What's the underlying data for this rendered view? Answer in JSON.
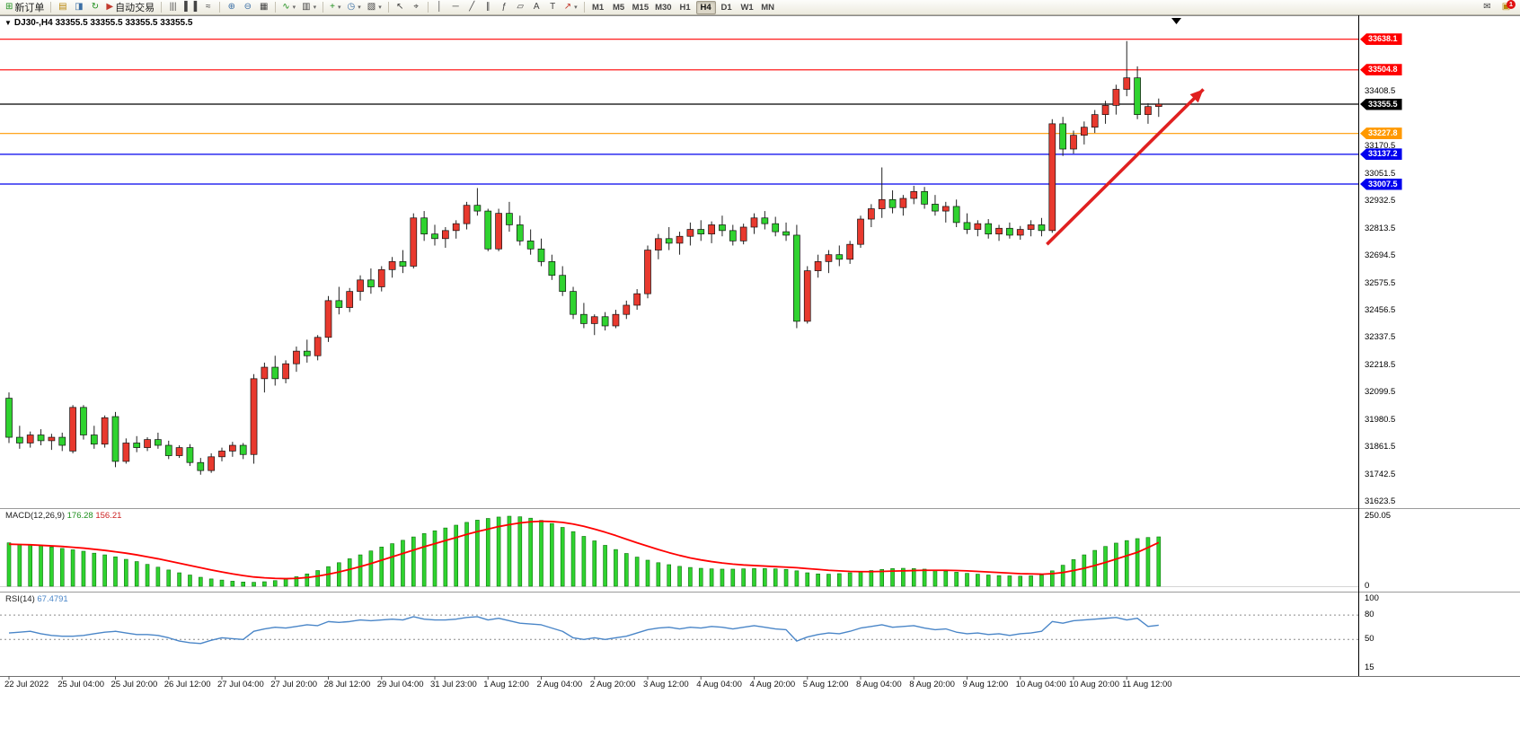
{
  "toolbar": {
    "labels": {
      "new_order": "新订单",
      "autotrading": "自动交易"
    },
    "icons": {
      "new_order": "⊞",
      "market_watch": "▤",
      "navigator": "◨",
      "refresh": "↻",
      "autotrading": "▶",
      "bar_chart": "|||",
      "candle_chart": "▌▐",
      "line_chart": "≈",
      "zoom_in": "⊕",
      "zoom_out": "⊖",
      "tile_windows": "▦",
      "indicators": "∿",
      "templates": "▥",
      "add_indicator": "+",
      "periods": "◷",
      "profiles": "▧",
      "cursor": "↖",
      "crosshair": "⌖",
      "vline": "│",
      "hline": "─",
      "trendline": "╱",
      "channel": "∥",
      "fibonacci": "ƒ",
      "shapes": "▱",
      "text": "A",
      "text_label": "T",
      "arrows": "↗",
      "dropdown": "▾",
      "mail": "✉",
      "news": "▣"
    },
    "timeframes": [
      "M1",
      "M5",
      "M15",
      "M30",
      "H1",
      "H4",
      "D1",
      "W1",
      "MN"
    ],
    "active_timeframe": "H4",
    "notifications": "1"
  },
  "chart": {
    "deal_arrow": "▼",
    "title": "DJ30-,H4 33355.5 33355.5 33355.5 33355.5"
  },
  "chart_data": {
    "type": "candlestick",
    "symbol": "DJ30-",
    "timeframe": "H4",
    "title": "DJ30-,H4 33355.5 33355.5 33355.5 33355.5",
    "colors": {
      "up": "#e8392e",
      "down": "#2fd32f",
      "wick": "#222222"
    },
    "price_axis": {
      "ticks": [
        33408.5,
        33170.5,
        33051.5,
        32932.5,
        32813.5,
        32694.5,
        32575.5,
        32456.5,
        32337.5,
        32218.5,
        32099.5,
        31980.5,
        31861.5,
        31742.5,
        31623.5
      ]
    },
    "hlines": [
      {
        "price": 33638.1,
        "color": "#ff0000"
      },
      {
        "price": 33504.8,
        "color": "#ff0000"
      },
      {
        "price": 33227.8,
        "color": "#ff9900"
      },
      {
        "price": 33137.2,
        "color": "#0000ee"
      },
      {
        "price": 33007.5,
        "color": "#0000ee"
      }
    ],
    "price_line": {
      "price": 33355.5,
      "color": "#000000"
    },
    "annotation_arrow": {
      "from_bar": 97.5,
      "from_price": 32745,
      "to_bar": 112.2,
      "to_price": 33420,
      "color": "#e02020"
    },
    "candles": [
      [
        32075,
        32100,
        31880,
        31905
      ],
      [
        31905,
        31955,
        31855,
        31880
      ],
      [
        31880,
        31930,
        31860,
        31915
      ],
      [
        31915,
        31940,
        31870,
        31890
      ],
      [
        31890,
        31920,
        31850,
        31905
      ],
      [
        31905,
        31925,
        31845,
        31870
      ],
      [
        31845,
        32045,
        31835,
        32035
      ],
      [
        32035,
        32045,
        31895,
        31915
      ],
      [
        31915,
        31955,
        31855,
        31875
      ],
      [
        31875,
        32000,
        31860,
        31990
      ],
      [
        31995,
        32015,
        31775,
        31800
      ],
      [
        31800,
        31900,
        31790,
        31880
      ],
      [
        31880,
        31910,
        31840,
        31860
      ],
      [
        31860,
        31905,
        31845,
        31895
      ],
      [
        31895,
        31925,
        31855,
        31870
      ],
      [
        31870,
        31890,
        31810,
        31825
      ],
      [
        31825,
        31870,
        31815,
        31860
      ],
      [
        31860,
        31875,
        31780,
        31795
      ],
      [
        31795,
        31815,
        31742,
        31760
      ],
      [
        31760,
        31835,
        31750,
        31820
      ],
      [
        31820,
        31860,
        31800,
        31845
      ],
      [
        31845,
        31885,
        31820,
        31870
      ],
      [
        31870,
        31880,
        31810,
        31830
      ],
      [
        31830,
        32180,
        31790,
        32160
      ],
      [
        32160,
        32230,
        32100,
        32210
      ],
      [
        32210,
        32260,
        32130,
        32160
      ],
      [
        32160,
        32240,
        32140,
        32225
      ],
      [
        32225,
        32300,
        32190,
        32280
      ],
      [
        32280,
        32330,
        32230,
        32260
      ],
      [
        32260,
        32350,
        32240,
        32340
      ],
      [
        32340,
        32520,
        32320,
        32500
      ],
      [
        32500,
        32560,
        32440,
        32470
      ],
      [
        32470,
        32555,
        32450,
        32540
      ],
      [
        32540,
        32610,
        32500,
        32590
      ],
      [
        32590,
        32640,
        32530,
        32560
      ],
      [
        32560,
        32650,
        32540,
        32635
      ],
      [
        32635,
        32690,
        32600,
        32670
      ],
      [
        32670,
        32720,
        32620,
        32650
      ],
      [
        32650,
        32880,
        32640,
        32860
      ],
      [
        32860,
        32890,
        32760,
        32790
      ],
      [
        32790,
        32830,
        32740,
        32770
      ],
      [
        32770,
        32820,
        32730,
        32805
      ],
      [
        32805,
        32850,
        32770,
        32835
      ],
      [
        32835,
        32930,
        32810,
        32915
      ],
      [
        32915,
        32990,
        32870,
        32890
      ],
      [
        32890,
        32900,
        32715,
        32725
      ],
      [
        32725,
        32900,
        32715,
        32880
      ],
      [
        32880,
        32930,
        32800,
        32830
      ],
      [
        32830,
        32870,
        32740,
        32760
      ],
      [
        32760,
        32810,
        32700,
        32725
      ],
      [
        32725,
        32770,
        32650,
        32670
      ],
      [
        32670,
        32700,
        32590,
        32610
      ],
      [
        32610,
        32650,
        32520,
        32540
      ],
      [
        32540,
        32560,
        32420,
        32440
      ],
      [
        32440,
        32490,
        32380,
        32400
      ],
      [
        32400,
        32440,
        32350,
        32430
      ],
      [
        32430,
        32450,
        32370,
        32390
      ],
      [
        32390,
        32460,
        32380,
        32440
      ],
      [
        32440,
        32500,
        32420,
        32480
      ],
      [
        32480,
        32550,
        32460,
        32530
      ],
      [
        32530,
        32740,
        32510,
        32720
      ],
      [
        32720,
        32790,
        32680,
        32770
      ],
      [
        32770,
        32820,
        32720,
        32750
      ],
      [
        32750,
        32800,
        32700,
        32780
      ],
      [
        32780,
        32840,
        32740,
        32810
      ],
      [
        32810,
        32850,
        32760,
        32790
      ],
      [
        32790,
        32845,
        32750,
        32830
      ],
      [
        32830,
        32870,
        32780,
        32805
      ],
      [
        32805,
        32830,
        32740,
        32760
      ],
      [
        32760,
        32835,
        32745,
        32820
      ],
      [
        32820,
        32880,
        32790,
        32860
      ],
      [
        32860,
        32890,
        32810,
        32835
      ],
      [
        32835,
        32865,
        32780,
        32800
      ],
      [
        32800,
        32840,
        32760,
        32785
      ],
      [
        32785,
        32830,
        32380,
        32410
      ],
      [
        32410,
        32650,
        32400,
        32630
      ],
      [
        32630,
        32700,
        32600,
        32670
      ],
      [
        32670,
        32720,
        32620,
        32700
      ],
      [
        32700,
        32740,
        32650,
        32680
      ],
      [
        32680,
        32760,
        32660,
        32745
      ],
      [
        32745,
        32870,
        32730,
        32855
      ],
      [
        32855,
        32920,
        32820,
        32900
      ],
      [
        32900,
        33080,
        32860,
        32940
      ],
      [
        32940,
        32980,
        32880,
        32905
      ],
      [
        32905,
        32960,
        32870,
        32945
      ],
      [
        32945,
        33000,
        32920,
        32975
      ],
      [
        32975,
        32995,
        32900,
        32920
      ],
      [
        32920,
        32960,
        32870,
        32890
      ],
      [
        32890,
        32930,
        32840,
        32910
      ],
      [
        32910,
        32940,
        32820,
        32840
      ],
      [
        32840,
        32880,
        32790,
        32810
      ],
      [
        32810,
        32850,
        32780,
        32835
      ],
      [
        32835,
        32855,
        32770,
        32790
      ],
      [
        32790,
        32830,
        32760,
        32815
      ],
      [
        32815,
        32840,
        32770,
        32785
      ],
      [
        32785,
        32825,
        32765,
        32810
      ],
      [
        32810,
        32850,
        32780,
        32830
      ],
      [
        32830,
        32860,
        32780,
        32805
      ],
      [
        32805,
        33290,
        32795,
        33270
      ],
      [
        33270,
        33300,
        33130,
        33160
      ],
      [
        33160,
        33240,
        33140,
        33220
      ],
      [
        33220,
        33280,
        33180,
        33255
      ],
      [
        33255,
        33330,
        33230,
        33310
      ],
      [
        33310,
        33370,
        33270,
        33350
      ],
      [
        33350,
        33440,
        33310,
        33420
      ],
      [
        33420,
        33630,
        33390,
        33470
      ],
      [
        33470,
        33520,
        33290,
        33310
      ],
      [
        33310,
        33360,
        33270,
        33345
      ],
      [
        33345,
        33380,
        33300,
        33355.5
      ]
    ],
    "time_labels": [
      {
        "t": "22 Jul 2022",
        "b": 0
      },
      {
        "t": "25 Jul 04:00",
        "b": 5
      },
      {
        "t": "25 Jul 20:00",
        "b": 10
      },
      {
        "t": "26 Jul 12:00",
        "b": 15
      },
      {
        "t": "27 Jul 04:00",
        "b": 20
      },
      {
        "t": "27 Jul 20:00",
        "b": 25
      },
      {
        "t": "28 Jul 12:00",
        "b": 30
      },
      {
        "t": "29 Jul 04:00",
        "b": 35
      },
      {
        "t": "31 Jul 23:00",
        "b": 40
      },
      {
        "t": "1 Aug 12:00",
        "b": 45
      },
      {
        "t": "2 Aug 04:00",
        "b": 50
      },
      {
        "t": "2 Aug 20:00",
        "b": 55
      },
      {
        "t": "3 Aug 12:00",
        "b": 60
      },
      {
        "t": "4 Aug 04:00",
        "b": 65
      },
      {
        "t": "4 Aug 20:00",
        "b": 70
      },
      {
        "t": "5 Aug 12:00",
        "b": 75
      },
      {
        "t": "8 Aug 04:00",
        "b": 80
      },
      {
        "t": "8 Aug 20:00",
        "b": 85
      },
      {
        "t": "9 Aug 12:00",
        "b": 90
      },
      {
        "t": "10 Aug 04:00",
        "b": 95
      },
      {
        "t": "10 Aug 20:00",
        "b": 100
      },
      {
        "t": "11 Aug 12:00",
        "b": 105
      }
    ],
    "macd": {
      "name": "MACD(12,26,9)",
      "value": "176.28",
      "signal_value": "156.21",
      "axis": {
        "max": 250.05,
        "max_label": "250.05",
        "min": 0,
        "min_label": "0"
      },
      "colors": {
        "histogram": "#2fd32f",
        "signal": "#ff0000"
      },
      "histogram": [
        155,
        150,
        148,
        145,
        140,
        135,
        130,
        125,
        118,
        112,
        105,
        96,
        88,
        78,
        68,
        58,
        48,
        40,
        32,
        26,
        22,
        18,
        15,
        14,
        16,
        20,
        26,
        34,
        44,
        56,
        70,
        84,
        98,
        112,
        126,
        140,
        152,
        164,
        176,
        188,
        198,
        208,
        218,
        228,
        236,
        242,
        247,
        250,
        248,
        243,
        235,
        224,
        210,
        195,
        178,
        162,
        146,
        131,
        117,
        104,
        93,
        84,
        77,
        71,
        67,
        64,
        62,
        61,
        61,
        62,
        63,
        63,
        62,
        60,
        55,
        48,
        44,
        43,
        45,
        48,
        52,
        56,
        60,
        63,
        64,
        63,
        61,
        58,
        54,
        50,
        46,
        43,
        40,
        38,
        37,
        36,
        37,
        40,
        55,
        75,
        95,
        112,
        128,
        142,
        154,
        163,
        170,
        174,
        176.28
      ],
      "signal": [
        150,
        149,
        148,
        146,
        144,
        142,
        139,
        136,
        132,
        128,
        123,
        118,
        112,
        105,
        98,
        90,
        82,
        74,
        66,
        58,
        51,
        44,
        38,
        33,
        30,
        28,
        27,
        28,
        31,
        36,
        43,
        51,
        60,
        70,
        81,
        93,
        105,
        117,
        129,
        141,
        152,
        163,
        174,
        185,
        195,
        204,
        213,
        220,
        226,
        230,
        232,
        231,
        228,
        222,
        214,
        204,
        193,
        181,
        168,
        155,
        143,
        131,
        120,
        110,
        101,
        94,
        88,
        83,
        79,
        76,
        74,
        72,
        70,
        68,
        66,
        63,
        60,
        57,
        55,
        53,
        52,
        52,
        53,
        54,
        55,
        56,
        57,
        57,
        57,
        56,
        55,
        53,
        51,
        49,
        47,
        45,
        44,
        43,
        45,
        49,
        56,
        64,
        74,
        85,
        97,
        109,
        121,
        138,
        156.21
      ]
    },
    "rsi": {
      "name": "RSI(14)",
      "value": "67.4791",
      "color": "#4a86c8",
      "axis_labels": [
        100,
        80,
        50,
        15
      ],
      "levels": [
        80,
        50
      ],
      "values": [
        58,
        59,
        60,
        57,
        55,
        54,
        54,
        55,
        57,
        59,
        60,
        58,
        56,
        56,
        55,
        52,
        48,
        46,
        45,
        49,
        52,
        51,
        50,
        60,
        63,
        65,
        64,
        66,
        68,
        67,
        72,
        71,
        72,
        74,
        73,
        74,
        75,
        74,
        78,
        75,
        74,
        74,
        75,
        77,
        78,
        74,
        76,
        73,
        70,
        69,
        68,
        64,
        60,
        52,
        50,
        52,
        50,
        52,
        54,
        58,
        62,
        64,
        65,
        63,
        65,
        64,
        66,
        65,
        63,
        65,
        67,
        65,
        63,
        62,
        48,
        53,
        56,
        58,
        57,
        60,
        64,
        66,
        68,
        65,
        66,
        67,
        64,
        62,
        63,
        59,
        57,
        58,
        56,
        57,
        55,
        57,
        58,
        60,
        72,
        70,
        73,
        74,
        75,
        76,
        77,
        74,
        76,
        66,
        67.48
      ]
    }
  }
}
